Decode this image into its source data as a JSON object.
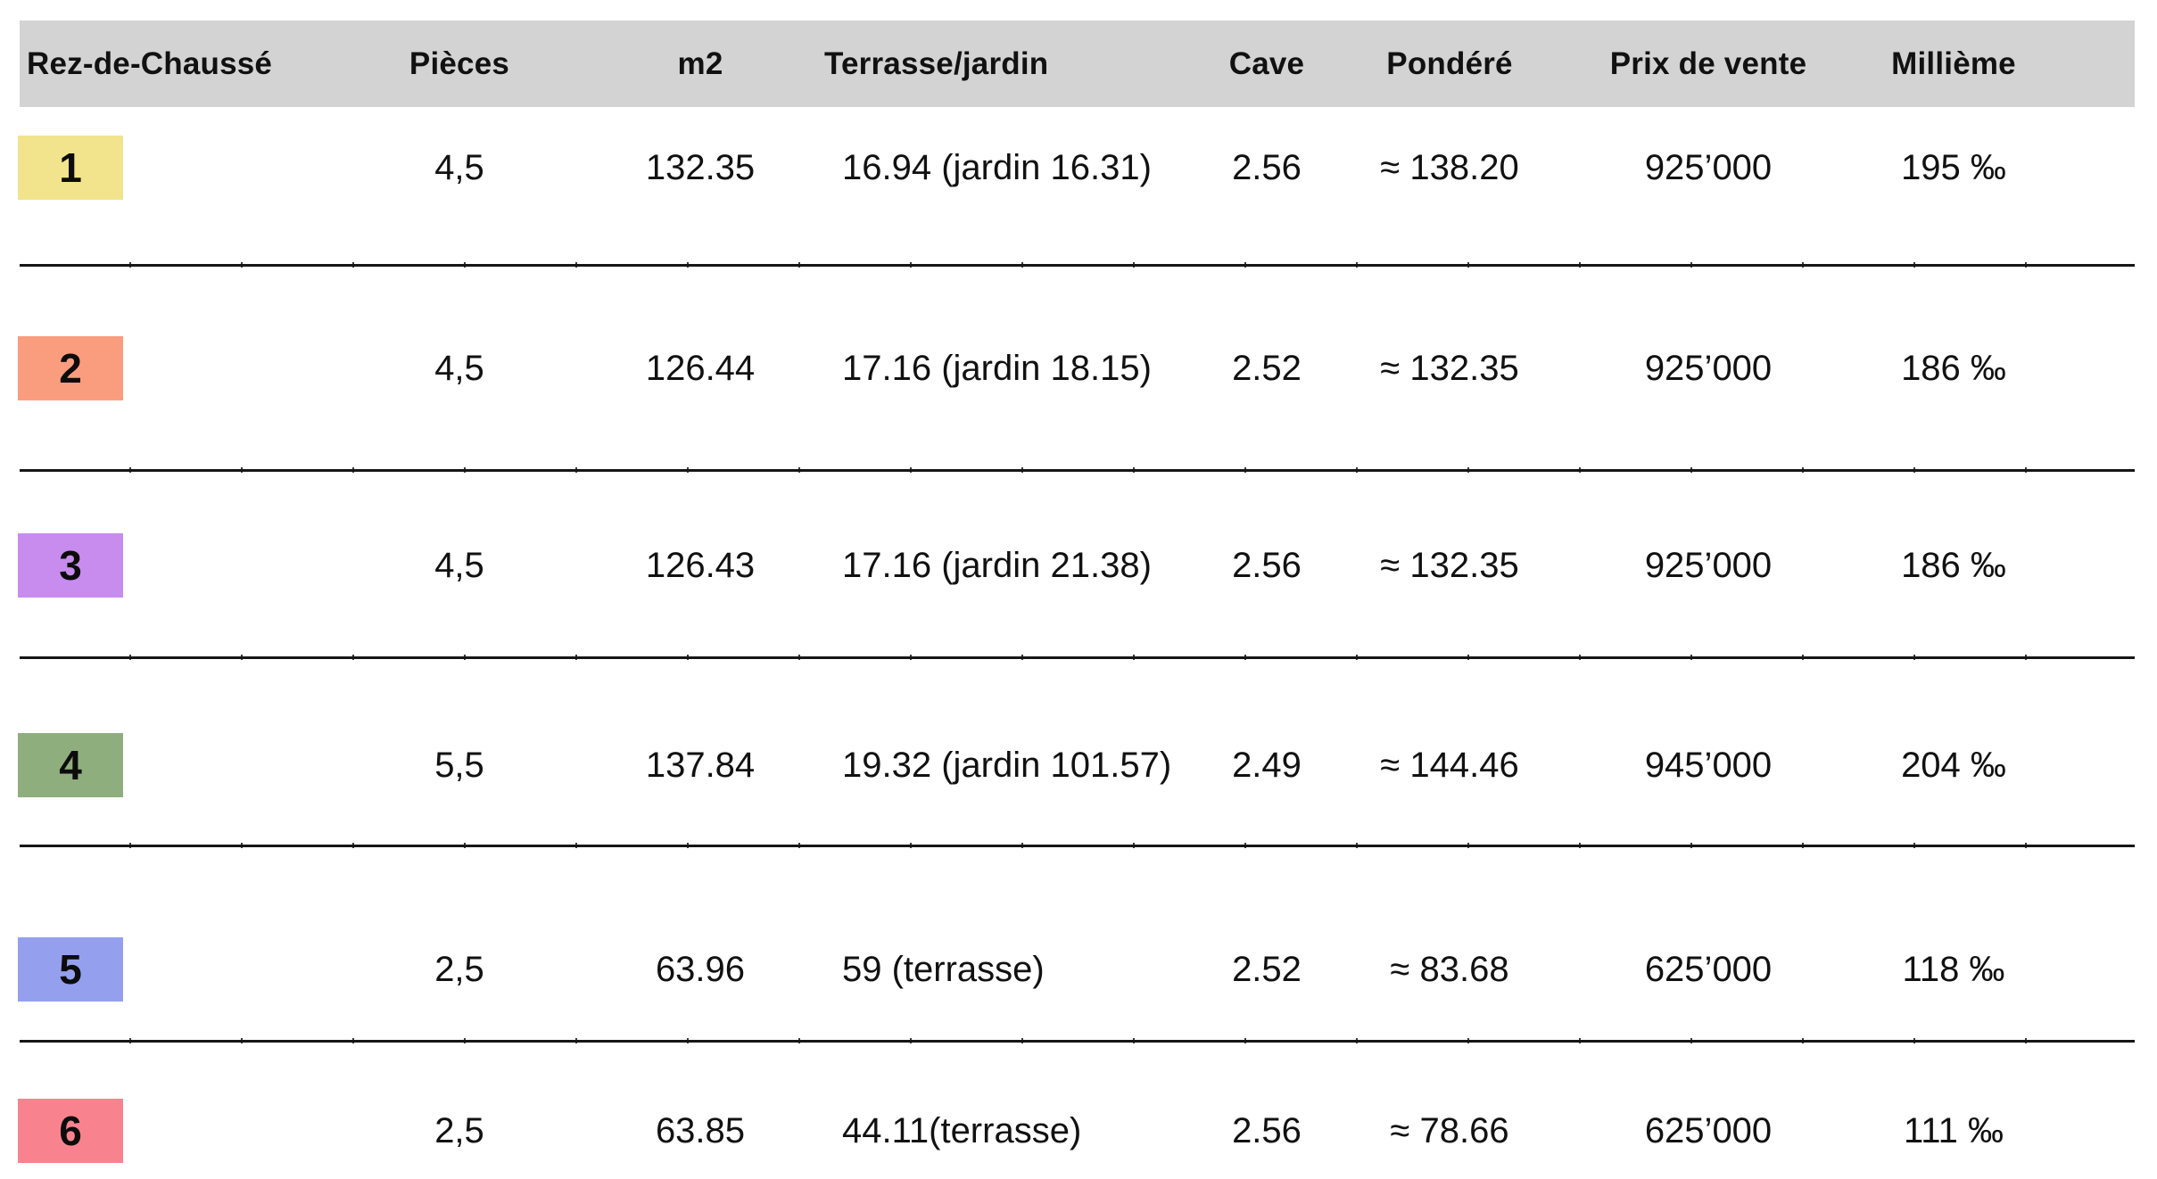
{
  "table": {
    "headers": {
      "rez": "Rez-de-Chaussé",
      "pieces": "Pièces",
      "m2": "m2",
      "terrasse": "Terrasse/jardin",
      "cave": "Cave",
      "pondere": "Pondéré",
      "prix": "Prix de vente",
      "millieme": "Millième"
    },
    "rows": [
      {
        "num": "1",
        "color": "#f1e48c",
        "pieces": "4,5",
        "m2": "132.35",
        "terrasse": "16.94 (jardin 16.31)",
        "cave": "2.56",
        "pondere": "≈ 138.20",
        "prix": "925’000",
        "millieme": "195 ‰"
      },
      {
        "num": "2",
        "color": "#f99d7e",
        "pieces": "4,5",
        "m2": "126.44",
        "terrasse": "17.16 (jardin 18.15)",
        "cave": "2.52",
        "pondere": "≈ 132.35",
        "prix": "925’000",
        "millieme": "186 ‰"
      },
      {
        "num": "3",
        "color": "#c88cef",
        "pieces": "4,5",
        "m2": "126.43",
        "terrasse": "17.16 (jardin 21.38)",
        "cave": "2.56",
        "pondere": "≈ 132.35",
        "prix": "925’000",
        "millieme": "186 ‰"
      },
      {
        "num": "4",
        "color": "#8fae7d",
        "pieces": "5,5",
        "m2": "137.84",
        "terrasse": "19.32 (jardin 101.57)",
        "cave": "2.49",
        "pondere": "≈ 144.46",
        "prix": "945’000",
        "millieme": "204 ‰"
      },
      {
        "num": "5",
        "color": "#94a0ee",
        "pieces": "2,5",
        "m2": "63.96",
        "terrasse": "59 (terrasse)",
        "cave": "2.52",
        "pondere": "≈ 83.68",
        "prix": "625’000",
        "millieme": "118 ‰"
      },
      {
        "num": "6",
        "color": "#f8838e",
        "pieces": "2,5",
        "m2": "63.85",
        "terrasse": "44.11(terrasse)",
        "cave": "2.56",
        "pondere": "≈ 78.66",
        "prix": "625’000",
        "millieme": "111 ‰"
      }
    ],
    "colors": {
      "header_bg": "#d3d3d3",
      "divider": "#161616",
      "text": "#111111"
    }
  }
}
